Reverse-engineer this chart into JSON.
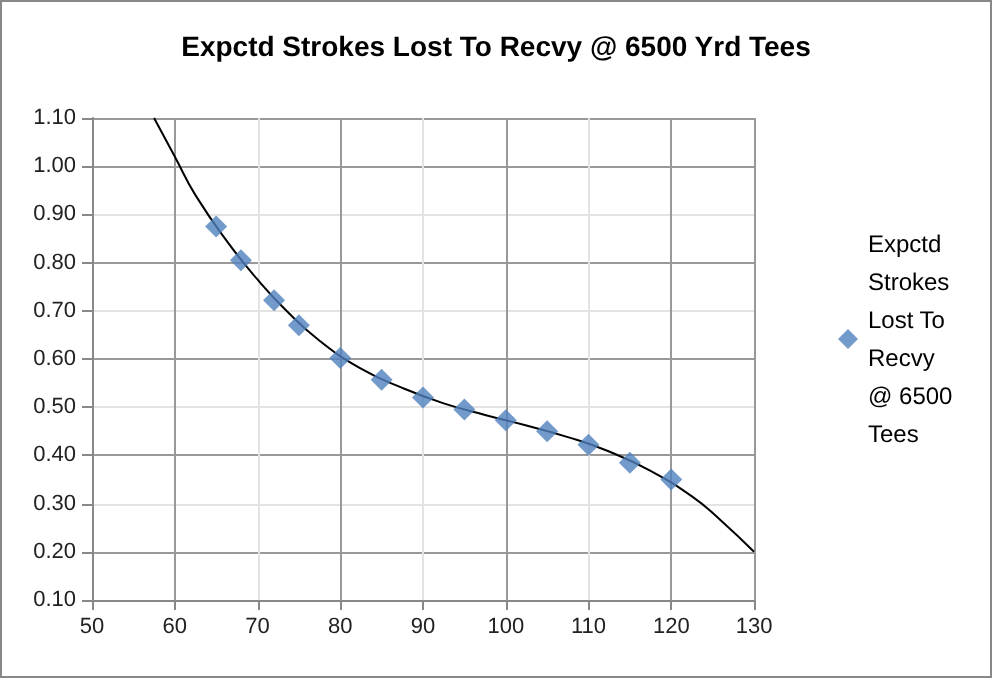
{
  "chart_data": {
    "type": "scatter",
    "title": "Expctd Strokes Lost To Recvy @ 6500 Yrd Tees",
    "series": [
      {
        "name": "Expctd Strokes Lost To Recvy @ 6500 Tees",
        "color": "#4f81bd",
        "marker": "diamond",
        "x": [
          65,
          68,
          72,
          75,
          80,
          85,
          90,
          95,
          100,
          105,
          110,
          115,
          120
        ],
        "values": [
          0.875,
          0.805,
          0.722,
          0.67,
          0.602,
          0.557,
          0.52,
          0.495,
          0.473,
          0.45,
          0.422,
          0.385,
          0.35
        ]
      },
      {
        "type": "line",
        "color": "#000000",
        "marker": "none",
        "x": [
          57.5,
          60,
          62.5,
          66.5,
          70,
          73.5,
          77.5,
          82.5,
          87.5,
          92.5,
          97.5,
          102.5,
          107.5,
          112.5,
          117.5,
          122.5,
          126,
          130
        ],
        "values": [
          1.1,
          1.02,
          0.94,
          0.84,
          0.765,
          0.7,
          0.638,
          0.58,
          0.54,
          0.508,
          0.484,
          0.462,
          0.438,
          0.408,
          0.368,
          0.315,
          0.265,
          0.2
        ]
      }
    ],
    "xlim": [
      50,
      130
    ],
    "xticks": [
      50,
      60,
      70,
      80,
      90,
      100,
      110,
      120,
      130
    ],
    "ylim": [
      0.1,
      1.1
    ],
    "yticks": [
      {
        "value": 0.1,
        "label": "0.10"
      },
      {
        "value": 0.2,
        "label": "0.20"
      },
      {
        "value": 0.3,
        "label": "0.30"
      },
      {
        "value": 0.4,
        "label": "0.40"
      },
      {
        "value": 0.5,
        "label": "0.50"
      },
      {
        "value": 0.6,
        "label": "0.60"
      },
      {
        "value": 0.7,
        "label": "0.70"
      },
      {
        "value": 0.8,
        "label": "0.80"
      },
      {
        "value": 0.9,
        "label": "0.90"
      },
      {
        "value": 1.0,
        "label": "1.00"
      },
      {
        "value": 1.1,
        "label": "1.10"
      }
    ],
    "grid": true,
    "legend": "right"
  }
}
